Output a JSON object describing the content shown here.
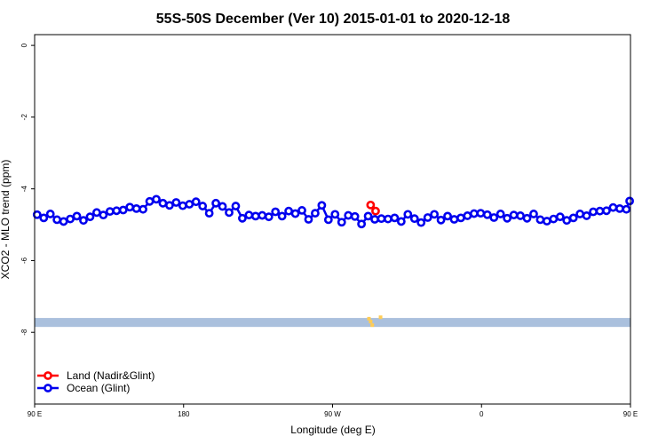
{
  "chart_data": {
    "type": "scatter",
    "title": "55S-50S December (Ver 10)   2015-01-01 to 2020-12-18",
    "xlabel": "Longitude (deg E)",
    "ylabel": "XCO2 - MLO trend (ppm)",
    "xlim": [
      90,
      450
    ],
    "ylim": [
      -10,
      0.3
    ],
    "x_ticks": [
      {
        "value": 90,
        "label": "90 E"
      },
      {
        "value": 180,
        "label": "180"
      },
      {
        "value": 270,
        "label": "90 W"
      },
      {
        "value": 360,
        "label": "0"
      },
      {
        "value": 450,
        "label": "90 E"
      },
      {
        "value": 540,
        "label": "180"
      }
    ],
    "y_ticks": [
      {
        "value": 0,
        "label": "0"
      },
      {
        "value": -2,
        "label": "-2"
      },
      {
        "value": -4,
        "label": "-4"
      },
      {
        "value": -6,
        "label": "-6"
      },
      {
        "value": -8,
        "label": "-8"
      }
    ],
    "grid": false,
    "legend_position": "bottom-left",
    "series": [
      {
        "name": "Land (Nadir&Glint)",
        "color": "#ff0000",
        "marker": "open-circle",
        "points": [
          [
            293,
            -4.45
          ],
          [
            296,
            -4.62
          ]
        ]
      },
      {
        "name": "Ocean (Glint)",
        "color": "#0000ee",
        "marker": "open-circle",
        "line": true,
        "points": [
          [
            91.5,
            -4.72
          ],
          [
            95.5,
            -4.81
          ],
          [
            99.5,
            -4.7
          ],
          [
            103.5,
            -4.86
          ],
          [
            107.5,
            -4.91
          ],
          [
            111.5,
            -4.84
          ],
          [
            115.5,
            -4.76
          ],
          [
            119.5,
            -4.88
          ],
          [
            123.5,
            -4.78
          ],
          [
            127.5,
            -4.66
          ],
          [
            131.5,
            -4.73
          ],
          [
            135.5,
            -4.63
          ],
          [
            139.5,
            -4.61
          ],
          [
            143.5,
            -4.59
          ],
          [
            147.5,
            -4.51
          ],
          [
            151.5,
            -4.55
          ],
          [
            155.5,
            -4.57
          ],
          [
            159.5,
            -4.35
          ],
          [
            163.5,
            -4.29
          ],
          [
            167.5,
            -4.4
          ],
          [
            171.5,
            -4.46
          ],
          [
            175.5,
            -4.38
          ],
          [
            179.5,
            -4.47
          ],
          [
            183.5,
            -4.43
          ],
          [
            187.5,
            -4.36
          ],
          [
            191.5,
            -4.48
          ],
          [
            195.5,
            -4.68
          ],
          [
            199.5,
            -4.4
          ],
          [
            203.5,
            -4.49
          ],
          [
            207.5,
            -4.66
          ],
          [
            211.5,
            -4.48
          ],
          [
            215.5,
            -4.82
          ],
          [
            219.5,
            -4.73
          ],
          [
            223.5,
            -4.76
          ],
          [
            227.5,
            -4.74
          ],
          [
            231.5,
            -4.78
          ],
          [
            235.5,
            -4.64
          ],
          [
            239.5,
            -4.76
          ],
          [
            243.5,
            -4.62
          ],
          [
            247.5,
            -4.69
          ],
          [
            251.5,
            -4.6
          ],
          [
            255.5,
            -4.85
          ],
          [
            259.5,
            -4.68
          ],
          [
            263.5,
            -4.46
          ],
          [
            267.5,
            -4.86
          ],
          [
            271.5,
            -4.71
          ],
          [
            275.5,
            -4.93
          ],
          [
            279.5,
            -4.74
          ],
          [
            283.5,
            -4.77
          ],
          [
            287.5,
            -4.98
          ],
          [
            291.5,
            -4.76
          ],
          [
            295.5,
            -4.85
          ],
          [
            299.5,
            -4.83
          ],
          [
            303.5,
            -4.84
          ],
          [
            307.5,
            -4.81
          ],
          [
            311.5,
            -4.91
          ],
          [
            315.5,
            -4.71
          ],
          [
            319.5,
            -4.83
          ],
          [
            323.5,
            -4.94
          ],
          [
            327.5,
            -4.8
          ],
          [
            331.5,
            -4.71
          ],
          [
            335.5,
            -4.87
          ],
          [
            339.5,
            -4.76
          ],
          [
            343.5,
            -4.85
          ],
          [
            347.5,
            -4.81
          ],
          [
            351.5,
            -4.75
          ],
          [
            355.5,
            -4.69
          ],
          [
            359.5,
            -4.68
          ],
          [
            363.5,
            -4.72
          ],
          [
            367.5,
            -4.8
          ],
          [
            371.5,
            -4.7
          ],
          [
            375.5,
            -4.82
          ],
          [
            379.5,
            -4.73
          ],
          [
            383.5,
            -4.75
          ],
          [
            387.5,
            -4.82
          ],
          [
            391.5,
            -4.7
          ],
          [
            395.5,
            -4.86
          ],
          [
            399.5,
            -4.9
          ],
          [
            403.5,
            -4.84
          ],
          [
            407.5,
            -4.78
          ],
          [
            411.5,
            -4.88
          ],
          [
            415.5,
            -4.81
          ],
          [
            419.5,
            -4.7
          ],
          [
            423.5,
            -4.75
          ],
          [
            427.5,
            -4.64
          ],
          [
            431.5,
            -4.62
          ],
          [
            435.5,
            -4.61
          ],
          [
            439.5,
            -4.52
          ],
          [
            443.5,
            -4.55
          ],
          [
            447.5,
            -4.57
          ],
          [
            449.5,
            -4.34
          ]
        ]
      }
    ],
    "land_band": {
      "y_min": -7.85,
      "y_max": -7.6,
      "color": "#aac0dd"
    },
    "land_marks": {
      "color": "#ffcc55",
      "points": [
        [
          292,
          -7.62
        ],
        [
          293,
          -7.7
        ],
        [
          294,
          -7.8
        ],
        [
          299,
          -7.58
        ]
      ]
    }
  }
}
